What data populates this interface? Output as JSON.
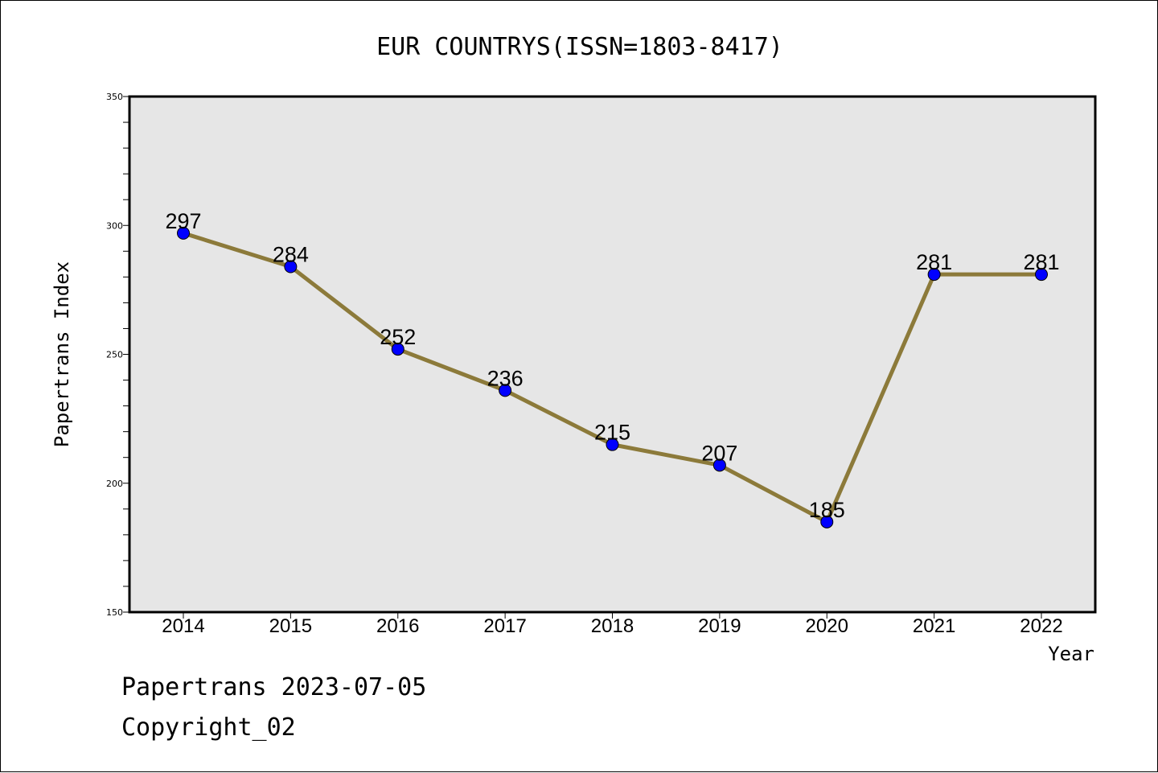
{
  "colors": {
    "line": "#8c7a3a",
    "marker": "#0000ff",
    "plot_background": "#e6e6e6",
    "frame": "#000000"
  },
  "chart_data": {
    "type": "line",
    "title": "EUR COUNTRYS(ISSN=1803-8417)",
    "xlabel": "Year",
    "ylabel": "Papertrans Index",
    "categories": [
      "2014",
      "2015",
      "2016",
      "2017",
      "2018",
      "2019",
      "2020",
      "2021",
      "2022"
    ],
    "series": [
      {
        "values": [
          297,
          284,
          252,
          236,
          215,
          207,
          185,
          281,
          281
        ]
      }
    ],
    "ylim": [
      150,
      350
    ],
    "y_ticks": [
      150,
      200,
      250,
      300,
      350
    ],
    "y_minor_step": 10,
    "grid": false,
    "data_labels": true
  },
  "footer": {
    "line1": "Papertrans 2023-07-05",
    "line2": "Copyright_02"
  }
}
